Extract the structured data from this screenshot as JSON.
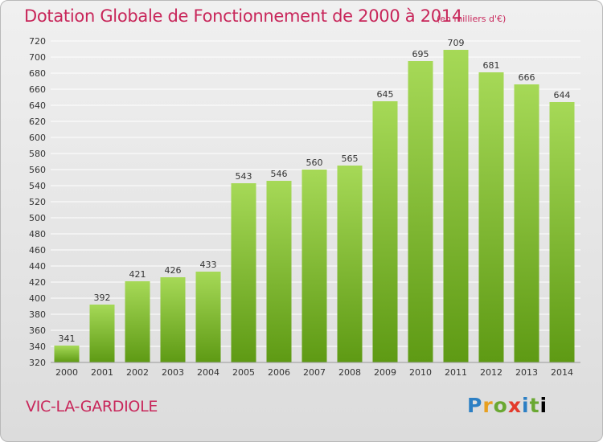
{
  "header": {
    "title": "Dotation Globale de Fonctionnement de 2000 à 2014",
    "unit": "(en milliers d'€)"
  },
  "footer": {
    "commune": "VIC-LA-GARDIOLE",
    "logo_letters": [
      "P",
      "r",
      "o",
      "x",
      "i",
      "t",
      "i"
    ]
  },
  "colors": {
    "title": "#c8265a",
    "bar_top": "#a6d957",
    "bar_bottom": "#5e9a14",
    "grid": "#ffffff",
    "axis_text": "#333333"
  },
  "chart_data": {
    "type": "bar",
    "title": "Dotation Globale de Fonctionnement de 2000 à 2014",
    "xlabel": "",
    "ylabel": "",
    "categories": [
      "2000",
      "2001",
      "2002",
      "2003",
      "2004",
      "2005",
      "2006",
      "2007",
      "2008",
      "2009",
      "2010",
      "2011",
      "2012",
      "2013",
      "2014"
    ],
    "values": [
      341,
      392,
      421,
      426,
      433,
      543,
      546,
      560,
      565,
      645,
      695,
      709,
      681,
      666,
      644
    ],
    "ylim": [
      320,
      720
    ],
    "yticks": [
      320,
      340,
      360,
      380,
      400,
      420,
      440,
      460,
      480,
      500,
      520,
      540,
      560,
      580,
      600,
      620,
      640,
      660,
      680,
      700,
      720
    ],
    "grid": "horizontal",
    "legend": "none"
  }
}
